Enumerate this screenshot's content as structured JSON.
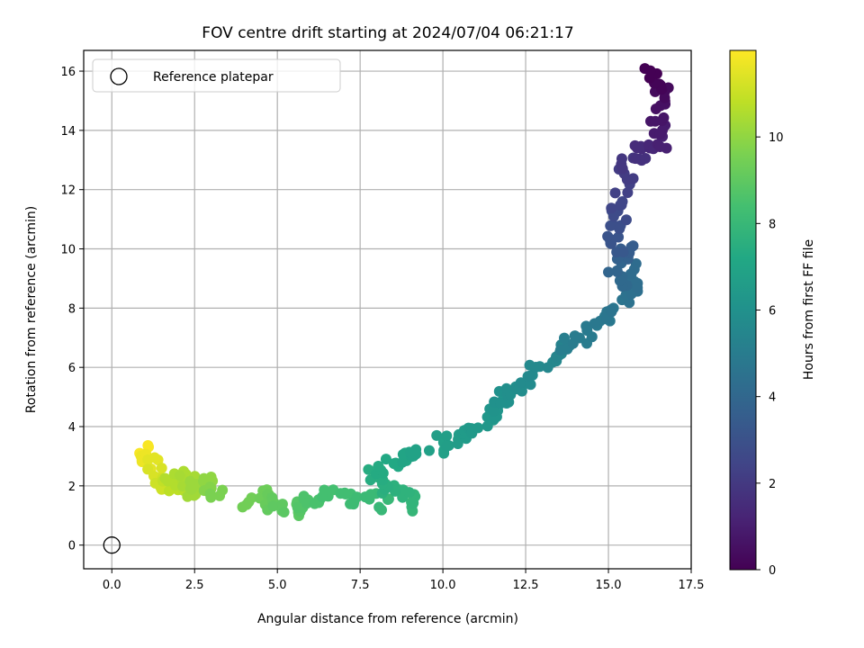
{
  "chart_data": {
    "type": "scatter",
    "title": "FOV centre drift starting at 2024/07/04 06:21:17",
    "xlabel": "Angular distance from reference (arcmin)",
    "ylabel": "Rotation from reference (arcmin)",
    "xlim": [
      -0.85,
      17.5
    ],
    "ylim": [
      -0.8,
      16.7
    ],
    "xticks": [
      "0.0",
      "2.5",
      "5.0",
      "7.5",
      "10.0",
      "12.5",
      "15.0",
      "17.5"
    ],
    "xtick_values": [
      0,
      2.5,
      5,
      7.5,
      10,
      12.5,
      15,
      17.5
    ],
    "yticks": [
      "0",
      "2",
      "4",
      "6",
      "8",
      "10",
      "12",
      "14",
      "16"
    ],
    "ytick_values": [
      0,
      2,
      4,
      6,
      8,
      10,
      12,
      14,
      16
    ],
    "grid": true,
    "legend": {
      "placement": "upper-left",
      "entries": [
        "Reference platepar"
      ]
    },
    "reference_point": {
      "x": 0,
      "y": 0,
      "label": "Reference platepar"
    },
    "colorbar": {
      "label": "Hours from first FF file",
      "colormap": "viridis",
      "range": [
        0,
        12
      ],
      "ticks": [
        "0",
        "2",
        "4",
        "6",
        "8",
        "10"
      ],
      "tick_values": [
        0,
        2,
        4,
        6,
        8,
        10
      ]
    },
    "drift_path": {
      "x": [
        16.35,
        16.45,
        16.6,
        16.5,
        16.45,
        16.6,
        16.55,
        16.3,
        15.8,
        15.9,
        15.6,
        15.5,
        15.45,
        15.3,
        15.35,
        15.3,
        15.2,
        15.25,
        15.5,
        15.4,
        15.15,
        15.35,
        15.7,
        15.75,
        15.8,
        15.4,
        15.3,
        15.1,
        14.8,
        14.5,
        14.1,
        13.8,
        13.6,
        13.5,
        13.2,
        12.7,
        12.5,
        12.2,
        12.0,
        11.8,
        11.7,
        11.5,
        11.3,
        11.0,
        10.5,
        10.3,
        10.0,
        9.8,
        9.2,
        9.0,
        8.8,
        8.5,
        8.2,
        8.0,
        8.1,
        8.4,
        8.8,
        9.0,
        8.9,
        8.3,
        7.8,
        7.3,
        7.0,
        6.5,
        6.3,
        6.0,
        5.8,
        5.6,
        5.4,
        5.0,
        4.8,
        4.6,
        4.5,
        4.1,
        3.2,
        3.0,
        2.8,
        2.6,
        2.4,
        2.3,
        2.0,
        1.8,
        2.1,
        1.9,
        1.7,
        1.5,
        1.3,
        1.2,
        1.1,
        1.0
      ],
      "y": [
        15.9,
        15.5,
        15.3,
        14.8,
        14.4,
        14.0,
        13.6,
        13.5,
        13.4,
        13.1,
        12.9,
        12.5,
        12.0,
        11.6,
        11.1,
        10.6,
        10.3,
        10.1,
        9.9,
        9.7,
        9.3,
        8.9,
        9.3,
        8.9,
        8.6,
        8.4,
        8.1,
        7.8,
        7.6,
        7.2,
        7.0,
        6.8,
        6.6,
        6.4,
        6.0,
        5.9,
        5.6,
        5.3,
        5.2,
        5.0,
        4.7,
        4.5,
        4.2,
        3.9,
        3.8,
        3.6,
        3.5,
        3.3,
        3.2,
        3.0,
        2.9,
        2.8,
        2.6,
        2.4,
        2.1,
        1.9,
        1.7,
        1.5,
        1.3,
        1.4,
        1.6,
        1.5,
        1.7,
        1.8,
        1.6,
        1.5,
        1.4,
        1.3,
        1.2,
        1.3,
        1.4,
        1.5,
        1.8,
        1.4,
        1.7,
        1.9,
        2.1,
        2.0,
        1.8,
        2.2,
        2.4,
        2.2,
        2.0,
        1.9,
        2.3,
        2.1,
        2.5,
        2.8,
        3.0,
        3.2
      ],
      "hours": [
        0.0,
        0.1,
        0.3,
        0.5,
        0.7,
        0.9,
        1.1,
        1.3,
        1.5,
        1.7,
        1.9,
        2.1,
        2.3,
        2.5,
        2.7,
        2.9,
        3.1,
        3.3,
        3.5,
        3.7,
        3.9,
        4.1,
        4.2,
        4.3,
        4.4,
        4.5,
        4.6,
        4.7,
        4.8,
        4.9,
        5.0,
        5.1,
        5.3,
        5.4,
        5.5,
        5.6,
        5.7,
        5.8,
        5.9,
        6.0,
        6.1,
        6.2,
        6.3,
        6.4,
        6.5,
        6.6,
        6.7,
        6.8,
        6.9,
        7.0,
        7.1,
        7.2,
        7.3,
        7.4,
        7.5,
        7.6,
        7.7,
        7.8,
        7.9,
        8.0,
        8.1,
        8.2,
        8.3,
        8.4,
        8.5,
        8.6,
        8.7,
        8.8,
        8.9,
        9.0,
        9.1,
        9.2,
        9.3,
        9.4,
        9.6,
        9.8,
        10.0,
        10.2,
        10.3,
        10.4,
        10.5,
        10.6,
        10.7,
        10.8,
        10.9,
        11.1,
        11.3,
        11.5,
        11.7,
        11.9
      ]
    }
  }
}
